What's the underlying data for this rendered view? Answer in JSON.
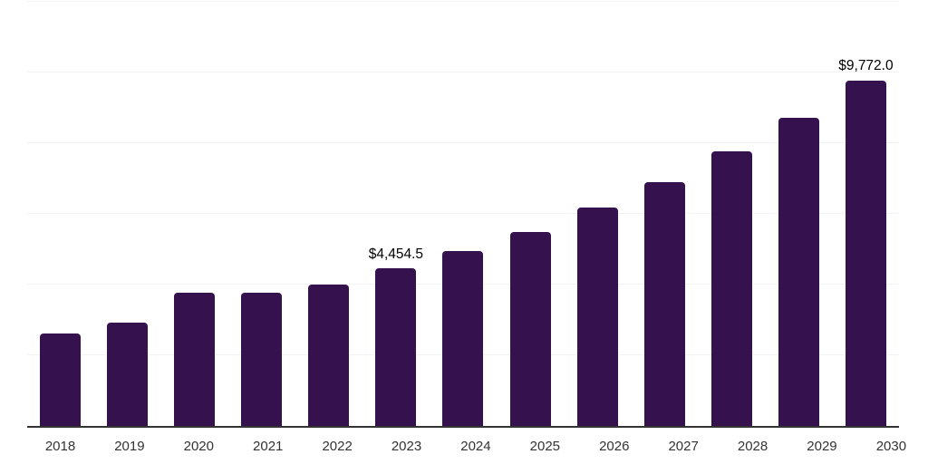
{
  "chart_data": {
    "type": "bar",
    "title": "",
    "xlabel": "",
    "ylabel": "",
    "categories": [
      "2018",
      "2019",
      "2020",
      "2021",
      "2022",
      "2023",
      "2024",
      "2025",
      "2026",
      "2027",
      "2028",
      "2029",
      "2030"
    ],
    "values": [
      2628,
      2935,
      3760,
      3780,
      4010,
      4454.5,
      4960,
      5500,
      6170,
      6890,
      7760,
      8710,
      9772
    ],
    "value_labels": [
      null,
      null,
      null,
      null,
      null,
      "$4,454.5",
      null,
      null,
      null,
      null,
      null,
      null,
      "$9,772.0"
    ],
    "ylim": [
      0,
      12000
    ],
    "grid_values": [
      2000,
      4000,
      6000,
      8000,
      10000,
      12000
    ],
    "grid": true,
    "legend": false,
    "colors": {
      "bar": "#35114D",
      "axis": "#333333",
      "gridline": "#F2F2F2",
      "value_label": "#000000",
      "tick_label": "#333333",
      "background": "#FFFFFF"
    }
  }
}
